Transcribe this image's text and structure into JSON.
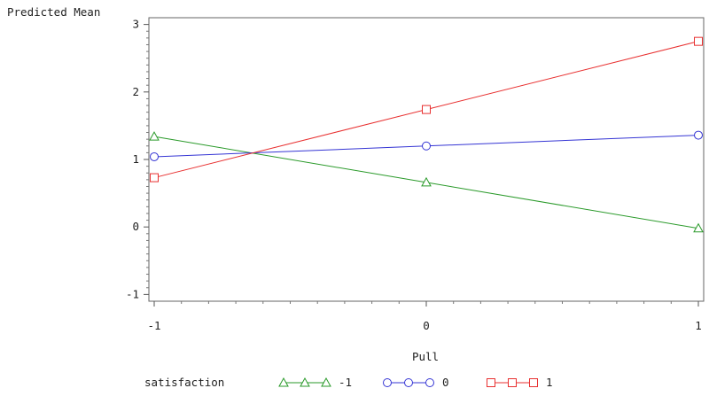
{
  "chart_data": {
    "type": "line",
    "title": "",
    "ylabel": "Predicted Mean",
    "xlabel": "Pull",
    "x": [
      -1,
      0,
      1
    ],
    "xticks": [
      -1,
      0,
      1
    ],
    "xtick_labels": [
      "-1",
      "0",
      "1"
    ],
    "yticks": [
      -1,
      0,
      1,
      2,
      3
    ],
    "ytick_labels": [
      "-1",
      "0",
      "1",
      "2",
      "3"
    ],
    "xlim": [
      -1,
      1
    ],
    "ylim": [
      -1.1,
      3.1
    ],
    "grid": false,
    "legend": {
      "title": "satisfaction",
      "position": "bottom"
    },
    "series": [
      {
        "name": "-1",
        "marker": "triangle",
        "color": "#2a9a2a",
        "values": [
          1.34,
          0.66,
          -0.02
        ]
      },
      {
        "name": "0",
        "marker": "circle",
        "color": "#3535d4",
        "values": [
          1.04,
          1.2,
          1.36
        ]
      },
      {
        "name": "1",
        "marker": "square",
        "color": "#e83030",
        "values": [
          0.73,
          1.74,
          2.75
        ]
      }
    ]
  }
}
